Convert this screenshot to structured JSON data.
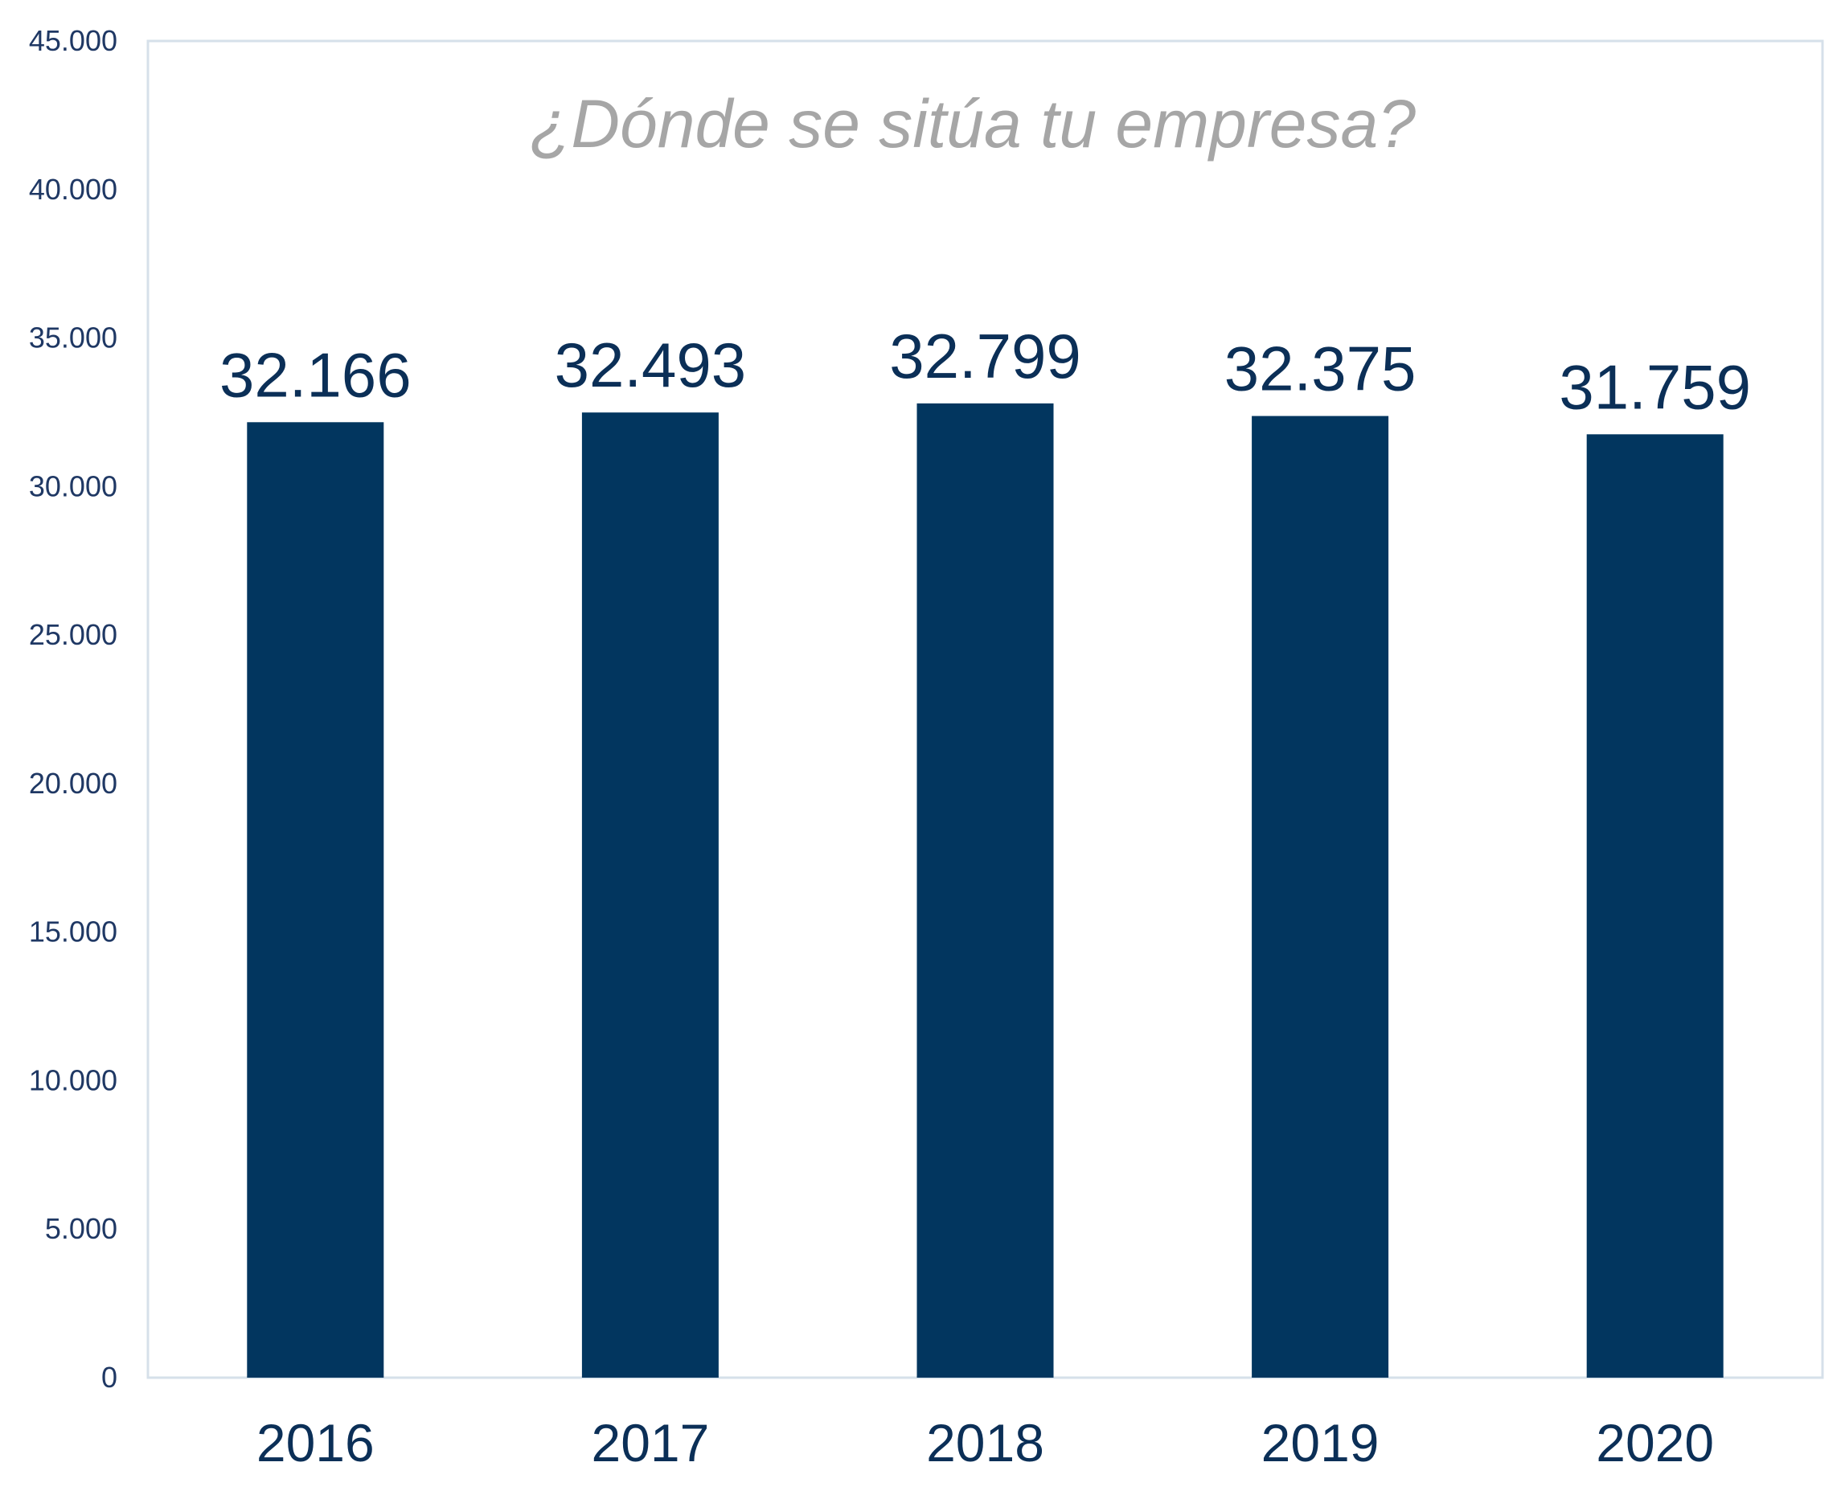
{
  "chart_data": {
    "type": "bar",
    "title": "¿Dónde se sitúa tu empresa?",
    "xlabel": "",
    "ylabel": "",
    "categories": [
      "2016",
      "2017",
      "2018",
      "2019",
      "2020"
    ],
    "values": [
      32166,
      32493,
      32799,
      32375,
      31759
    ],
    "data_labels": [
      "32.166",
      "32.493",
      "32.799",
      "32.375",
      "31.759"
    ],
    "ylim": [
      0,
      45000
    ],
    "yticks": [
      0,
      5000,
      10000,
      15000,
      20000,
      25000,
      30000,
      35000,
      40000,
      45000
    ],
    "ytick_labels": [
      "0",
      "5.000",
      "10.000",
      "15.000",
      "20.000",
      "25.000",
      "30.000",
      "35.000",
      "40.000",
      "45.000"
    ],
    "grid": false,
    "legend": "none",
    "colors": {
      "bar": "#02365f",
      "title": "#a6a6a6",
      "text": "#0b2f57",
      "axis": "#d6e0ea"
    }
  }
}
